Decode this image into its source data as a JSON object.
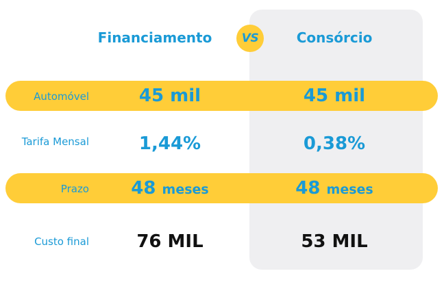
{
  "header": {
    "financiamento": "Financiamento",
    "vs": "VS",
    "consorcio": "Consórcio"
  },
  "rows": [
    {
      "label": "Automóvel",
      "financiamento": "45 mil",
      "consorcio": "45 mil"
    },
    {
      "label": "Tarifa Mensal",
      "financiamento": "1,44%",
      "consorcio": "0,38%"
    },
    {
      "label": "Prazo",
      "financiamento": "48",
      "financiamento_unit": "meses",
      "consorcio": "48",
      "consorcio_unit": "meses"
    },
    {
      "label": "Custo final",
      "financiamento": "76 MIL",
      "consorcio": "53 MIL"
    }
  ],
  "colors": {
    "accent_blue": "#1a9ad6",
    "highlight_yellow": "#ffcd38",
    "panel_gray": "#efeff1",
    "dark_text": "#111111"
  }
}
